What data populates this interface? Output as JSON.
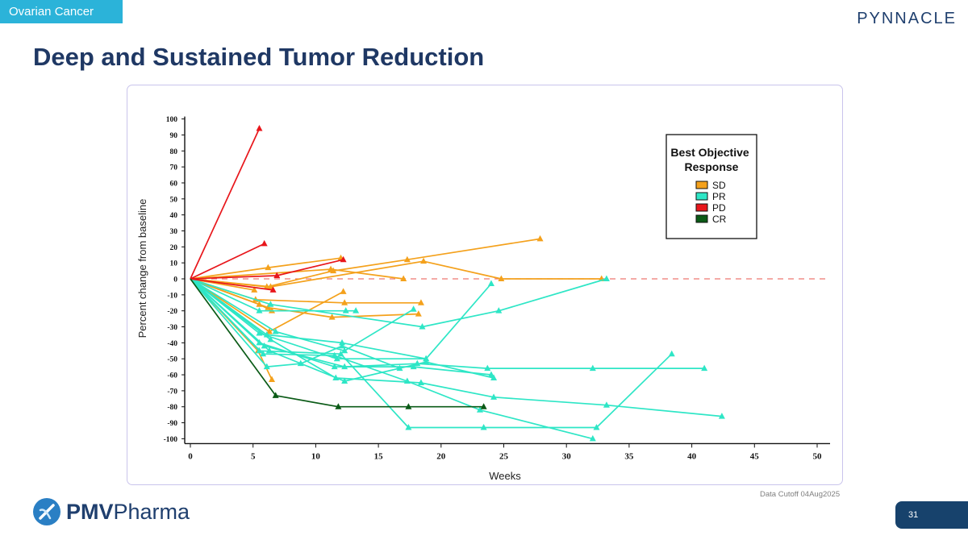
{
  "header": {
    "section_tag": "Ovarian Cancer",
    "brand": "PYNNACLE",
    "title": "Deep and Sustained Tumor Reduction"
  },
  "footer": {
    "cutoff": "Data Cutoff 04Aug2025",
    "logo_text_bold": "PMV",
    "logo_text": "Pharma",
    "page_number": "31"
  },
  "colors": {
    "SD": "#f4a11c",
    "PR": "#2ee6c6",
    "PD": "#e8161b",
    "CR": "#0a5a16",
    "reference": "#ee7771"
  },
  "chart_data": {
    "type": "line",
    "xlabel": "Weeks",
    "ylabel": "Percent change from baseline",
    "xlim": [
      0,
      50
    ],
    "ylim": [
      -100,
      100
    ],
    "xticks": [
      0,
      5,
      10,
      15,
      20,
      25,
      30,
      35,
      40,
      45,
      50
    ],
    "yticks": [
      100,
      90,
      80,
      70,
      60,
      50,
      40,
      30,
      20,
      10,
      0,
      -10,
      -20,
      -30,
      -40,
      -50,
      -60,
      -70,
      -80,
      -90,
      -100
    ],
    "reference_line": 0,
    "legend": {
      "title": "Best Objective Response",
      "position": "top-right",
      "entries": [
        "SD",
        "PR",
        "PD",
        "CR"
      ]
    },
    "series": [
      {
        "response": "PD",
        "points": [
          [
            0,
            0
          ],
          [
            5.5,
            94
          ]
        ]
      },
      {
        "response": "PD",
        "points": [
          [
            0,
            0
          ],
          [
            5.9,
            22
          ]
        ]
      },
      {
        "response": "PD",
        "points": [
          [
            0,
            0
          ],
          [
            6.9,
            2
          ],
          [
            12.2,
            12
          ]
        ]
      },
      {
        "response": "PD",
        "points": [
          [
            0,
            0
          ],
          [
            6.6,
            -7
          ]
        ]
      },
      {
        "response": "SD",
        "points": [
          [
            0,
            0
          ],
          [
            6.2,
            7
          ],
          [
            12,
            13
          ]
        ]
      },
      {
        "response": "SD",
        "points": [
          [
            0,
            0
          ],
          [
            6.1,
            -5
          ],
          [
            11.4,
            5
          ],
          [
            17.3,
            12
          ],
          [
            27.9,
            25
          ]
        ]
      },
      {
        "response": "SD",
        "points": [
          [
            0,
            0
          ],
          [
            11.2,
            6
          ],
          [
            17,
            0
          ]
        ]
      },
      {
        "response": "SD",
        "points": [
          [
            0,
            0
          ],
          [
            6.4,
            -5
          ],
          [
            18.6,
            11
          ],
          [
            24.8,
            0
          ],
          [
            32.8,
            0
          ]
        ]
      },
      {
        "response": "SD",
        "points": [
          [
            0,
            0
          ],
          [
            5.1,
            -7
          ]
        ]
      },
      {
        "response": "SD",
        "points": [
          [
            0,
            0
          ],
          [
            5.2,
            -13
          ],
          [
            12.3,
            -15
          ],
          [
            18.4,
            -15
          ]
        ]
      },
      {
        "response": "SD",
        "points": [
          [
            0,
            0
          ],
          [
            5.5,
            -16
          ],
          [
            6.5,
            -20
          ]
        ]
      },
      {
        "response": "SD",
        "points": [
          [
            0,
            0
          ],
          [
            6.2,
            -18
          ],
          [
            11.3,
            -24
          ],
          [
            18.2,
            -22
          ]
        ]
      },
      {
        "response": "SD",
        "points": [
          [
            0,
            0
          ],
          [
            6.3,
            -33
          ],
          [
            12.2,
            -8
          ]
        ]
      },
      {
        "response": "SD",
        "points": [
          [
            0,
            0
          ],
          [
            5.4,
            -45
          ],
          [
            6.5,
            -63
          ]
        ]
      },
      {
        "response": "PR",
        "points": [
          [
            0,
            0
          ],
          [
            5.5,
            -20
          ],
          [
            12.4,
            -20
          ],
          [
            13.2,
            -20
          ]
        ]
      },
      {
        "response": "PR",
        "points": [
          [
            0,
            0
          ],
          [
            6.4,
            -16
          ],
          [
            18.5,
            -30
          ],
          [
            24.6,
            -20
          ],
          [
            33.2,
            0
          ]
        ]
      },
      {
        "response": "PR",
        "points": [
          [
            0,
            0
          ],
          [
            6.8,
            -33
          ],
          [
            12.3,
            -45
          ],
          [
            17.8,
            -19
          ]
        ]
      },
      {
        "response": "PR",
        "points": [
          [
            0,
            0
          ],
          [
            5.5,
            -34
          ],
          [
            11.7,
            -50
          ],
          [
            18.8,
            -50
          ]
        ]
      },
      {
        "response": "PR",
        "points": [
          [
            0,
            0
          ],
          [
            6.1,
            -35
          ],
          [
            12.1,
            -40
          ],
          [
            18.8,
            -50
          ],
          [
            24,
            -3
          ]
        ]
      },
      {
        "response": "PR",
        "points": [
          [
            0,
            0
          ],
          [
            5.5,
            -40
          ],
          [
            11.5,
            -55
          ],
          [
            17.8,
            -55
          ],
          [
            24,
            -60
          ]
        ]
      },
      {
        "response": "PR",
        "points": [
          [
            0,
            0
          ],
          [
            5.9,
            -42
          ],
          [
            12.3,
            -55
          ],
          [
            18.1,
            -53
          ],
          [
            23.7,
            -56
          ],
          [
            32.1,
            -56
          ],
          [
            41,
            -56
          ]
        ]
      },
      {
        "response": "PR",
        "points": [
          [
            0,
            0
          ],
          [
            5.5,
            -45
          ],
          [
            12,
            -47
          ],
          [
            17.4,
            -93
          ],
          [
            23.4,
            -93
          ],
          [
            32.4,
            -93
          ],
          [
            38.4,
            -47
          ]
        ]
      },
      {
        "response": "PR",
        "points": [
          [
            0,
            0
          ],
          [
            6.4,
            -38
          ],
          [
            11.6,
            -62
          ],
          [
            18.4,
            -65
          ],
          [
            24.2,
            -74
          ],
          [
            33.2,
            -79
          ],
          [
            42.4,
            -86
          ]
        ]
      },
      {
        "response": "PR",
        "points": [
          [
            0,
            0
          ],
          [
            6.3,
            -45
          ],
          [
            12.3,
            -64
          ],
          [
            18.8,
            -52
          ],
          [
            24.2,
            -62
          ]
        ]
      },
      {
        "response": "PR",
        "points": [
          [
            0,
            0
          ],
          [
            5.8,
            -47
          ],
          [
            11.5,
            -48
          ],
          [
            17.3,
            -64
          ],
          [
            23.1,
            -82
          ],
          [
            32.1,
            -100
          ]
        ]
      },
      {
        "response": "PR",
        "points": [
          [
            0,
            0
          ],
          [
            6.1,
            -55
          ],
          [
            8.8,
            -53
          ],
          [
            12.1,
            -42
          ],
          [
            16.7,
            -56
          ]
        ]
      },
      {
        "response": "CR",
        "points": [
          [
            0,
            0
          ],
          [
            6.8,
            -73
          ],
          [
            11.8,
            -80
          ],
          [
            17.4,
            -80
          ],
          [
            23.4,
            -80
          ]
        ]
      }
    ]
  }
}
